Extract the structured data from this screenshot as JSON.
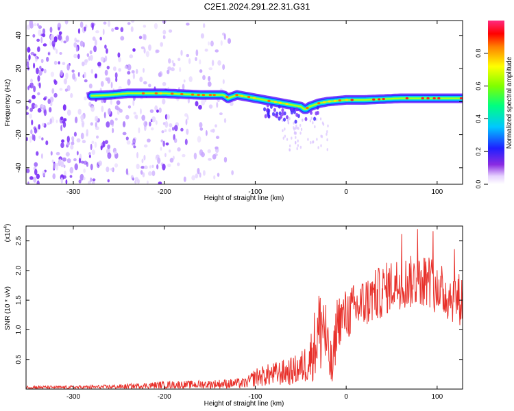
{
  "title": "C2E1.2024.291.22.31.G31",
  "chart_data": [
    {
      "type": "heatmap",
      "xlabel": "Height of straight line (km)",
      "ylabel": "Frequency (Hz)",
      "xlim": [
        -352,
        128
      ],
      "ylim": [
        -50,
        49
      ],
      "x_ticks": [
        -300,
        -200,
        -100,
        0,
        100
      ],
      "y_ticks": [
        -40,
        -20,
        0,
        20,
        40
      ],
      "colorbar": {
        "label": "Normalized spectral amplitude",
        "range": [
          0,
          1
        ],
        "ticks": [
          0.0,
          0.2,
          0.4,
          0.6,
          0.8
        ],
        "tick_labels": [
          "0.0",
          "0.2",
          "0.4",
          "0.6",
          "0.8"
        ]
      },
      "ridge": {
        "x": [
          -280,
          -260,
          -240,
          -200,
          -160,
          -135,
          -130,
          -120,
          -100,
          -80,
          -70,
          -60,
          -50,
          -45,
          -40,
          -30,
          -20,
          0,
          20,
          40,
          60,
          80,
          100,
          128
        ],
        "freq": [
          3.5,
          4,
          5,
          5,
          4,
          4,
          2,
          4,
          2,
          0,
          -1,
          -2,
          -3,
          -5,
          -3,
          -1,
          0,
          1,
          1,
          1.5,
          2,
          2,
          2,
          2
        ]
      },
      "noise_region_x": [
        -352,
        -125
      ]
    },
    {
      "type": "line",
      "xlabel": "Height of straight line (km)",
      "ylabel": "SNR (10 * v/v)",
      "y_multiplier": "(x10",
      "y_multiplier_exp": "4",
      "xlim": [
        -352,
        128
      ],
      "ylim": [
        0,
        2.75
      ],
      "x_ticks": [
        -300,
        -200,
        -100,
        0,
        100
      ],
      "y_ticks": [
        0.5,
        1.0,
        1.5,
        2.0,
        2.5
      ],
      "y_tick_labels": [
        "0.5",
        "1.0",
        "1.5",
        "2.0",
        "2.5"
      ],
      "color": "#e8302a",
      "series": [
        {
          "x": [
            -350,
            -300,
            -250,
            -200,
            -150,
            -110,
            -100,
            -80,
            -60,
            -50,
            -40,
            -35,
            -30,
            -25,
            -20,
            -15,
            -10,
            0,
            10,
            20,
            30,
            40,
            50,
            60,
            70,
            80,
            90,
            100,
            110,
            120,
            128
          ],
          "y": [
            0.03,
            0.03,
            0.04,
            0.07,
            0.08,
            0.1,
            0.2,
            0.25,
            0.3,
            0.35,
            0.5,
            0.75,
            0.95,
            1.15,
            0.6,
            0.3,
            1.15,
            1.25,
            1.35,
            1.45,
            1.55,
            1.65,
            1.75,
            1.8,
            1.8,
            1.85,
            1.85,
            1.7,
            1.6,
            1.55,
            1.5
          ]
        }
      ]
    }
  ]
}
